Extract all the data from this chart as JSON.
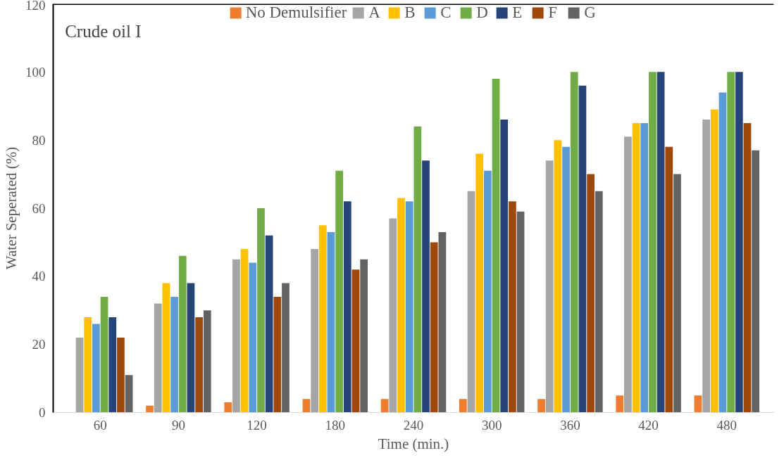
{
  "chart_data": {
    "type": "bar",
    "title": "Crude oil I",
    "xlabel": "Time (min.)",
    "ylabel": "Water Seperated (%)",
    "categories": [
      "60",
      "90",
      "120",
      "180",
      "240",
      "300",
      "360",
      "420",
      "480"
    ],
    "ylim": [
      0,
      120
    ],
    "yticks": [
      0,
      20,
      40,
      60,
      80,
      100,
      120
    ],
    "grid": false,
    "legend": "top",
    "series": [
      {
        "name": "No Demulsifier",
        "color": "#ed7d31",
        "values": [
          0,
          2,
          3,
          4,
          4,
          4,
          4,
          5,
          5
        ]
      },
      {
        "name": "A",
        "color": "#a5a5a5",
        "values": [
          22,
          32,
          45,
          48,
          57,
          65,
          74,
          81,
          86
        ]
      },
      {
        "name": "B",
        "color": "#ffc000",
        "values": [
          28,
          38,
          48,
          55,
          63,
          76,
          80,
          85,
          89
        ]
      },
      {
        "name": "C",
        "color": "#5b9bd5",
        "values": [
          26,
          34,
          44,
          53,
          62,
          71,
          78,
          85,
          94
        ]
      },
      {
        "name": "D",
        "color": "#70ad47",
        "values": [
          34,
          46,
          60,
          71,
          84,
          98,
          100,
          100,
          100
        ]
      },
      {
        "name": "E",
        "color": "#264478",
        "values": [
          28,
          38,
          52,
          62,
          74,
          86,
          96,
          100,
          100
        ]
      },
      {
        "name": "F",
        "color": "#9e480e",
        "values": [
          22,
          28,
          34,
          42,
          50,
          62,
          70,
          78,
          85
        ]
      },
      {
        "name": "G",
        "color": "#636363",
        "values": [
          11,
          30,
          38,
          45,
          53,
          59,
          65,
          70,
          77
        ]
      }
    ]
  }
}
